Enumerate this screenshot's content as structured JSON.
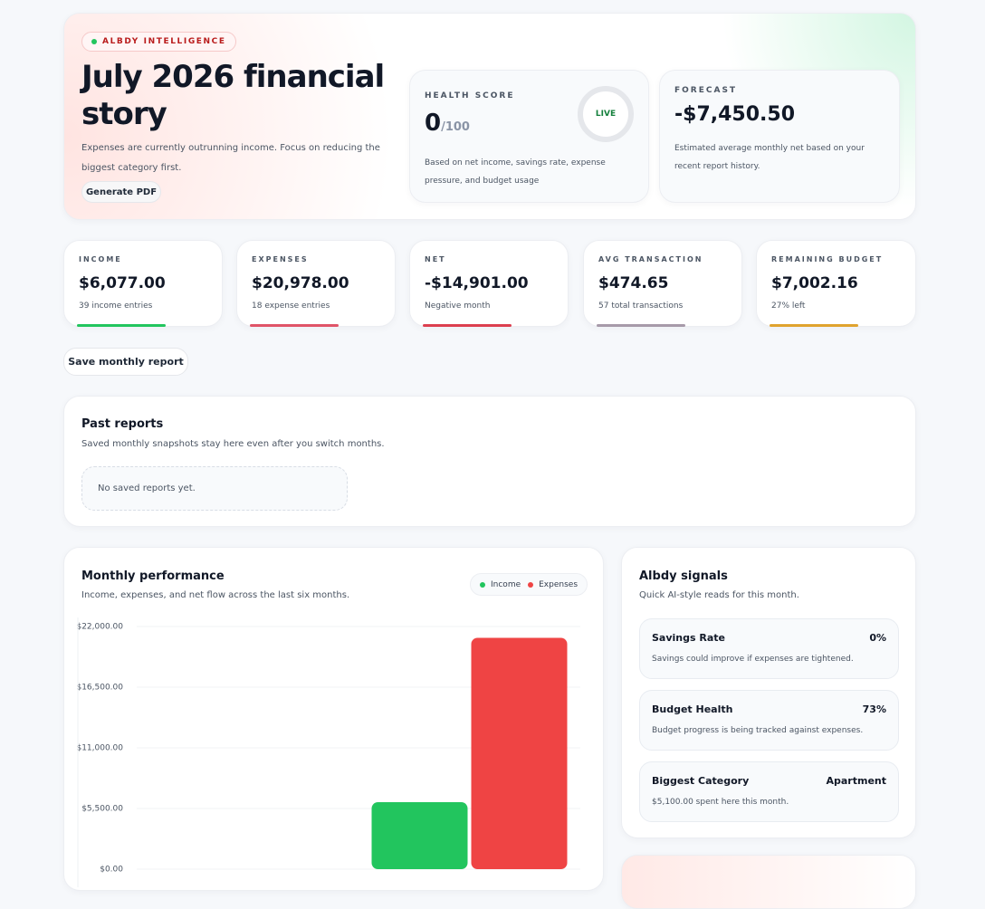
{
  "hero": {
    "badge": "ALBDY INTELLIGENCE",
    "title": "July 2026 financial story",
    "subtitle": "Expenses are currently outrunning income. Focus on reducing the biggest category first.",
    "button": "Generate PDF"
  },
  "health": {
    "label": "HEALTH SCORE",
    "score": "0",
    "max": "/100",
    "status": "LIVE",
    "description": "Based on net income, savings rate, expense pressure, and budget usage"
  },
  "forecast": {
    "label": "FORECAST",
    "value": "-$7,450.50",
    "description": "Estimated average monthly net based on your recent report history."
  },
  "stats": [
    {
      "label": "INCOME",
      "value": "$6,077.00",
      "note": "39 income entries"
    },
    {
      "label": "EXPENSES",
      "value": "$20,978.00",
      "note": "18 expense entries"
    },
    {
      "label": "NET",
      "value": "-$14,901.00",
      "note": "Negative month"
    },
    {
      "label": "AVG TRANSACTION",
      "value": "$474.65",
      "note": "57 total transactions"
    },
    {
      "label": "REMAINING BUDGET",
      "value": "$7,002.16",
      "note": "27% left"
    }
  ],
  "save_button": "Save monthly report",
  "past_reports": {
    "title": "Past reports",
    "description": "Saved monthly snapshots stay here even after you switch months.",
    "empty": "No saved reports yet."
  },
  "chart_data": {
    "type": "bar",
    "title": "Monthly performance",
    "subtitle": "Income, expenses, and net flow across the last six months.",
    "categories": [
      null,
      null
    ],
    "series": [
      {
        "name": "Income",
        "color": "#22c55e",
        "values": [
          0,
          6077
        ]
      },
      {
        "name": "Expenses",
        "color": "#ef4444",
        "values": [
          0,
          20978
        ]
      }
    ],
    "ylim": [
      0,
      22000
    ],
    "yticks": [
      {
        "value": 0,
        "label": "$0.00"
      },
      {
        "value": 5500,
        "label": "$5,500.00"
      },
      {
        "value": 11000,
        "label": "$11,000.00"
      },
      {
        "value": 16500,
        "label": "$16,500.00"
      },
      {
        "value": 22000,
        "label": "$22,000.00"
      }
    ],
    "grid": true
  },
  "signals": {
    "title": "Albdy signals",
    "subtitle": "Quick AI-style reads for this month.",
    "items": [
      {
        "name": "Savings Rate",
        "value": "0%",
        "description": "Savings could improve if expenses are tightened."
      },
      {
        "name": "Budget Health",
        "value": "73%",
        "description": "Budget progress is being tracked against expenses."
      },
      {
        "name": "Biggest Category",
        "value": "Apartment",
        "description": "$5,100.00 spent here this month."
      }
    ]
  }
}
